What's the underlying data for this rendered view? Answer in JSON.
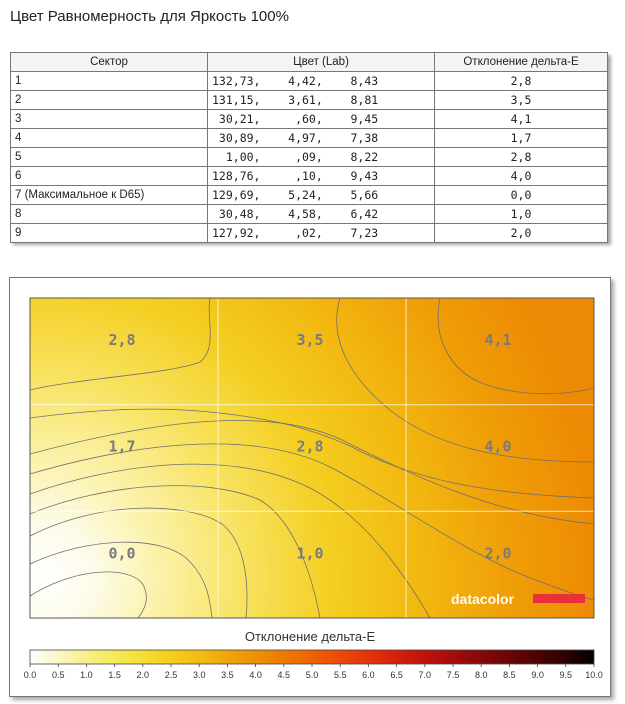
{
  "title": "Цвет Равномерность для Яркость 100%",
  "table": {
    "headers": [
      "Сектор",
      "Цвет (Lab)",
      "Отклонение дельта-E"
    ],
    "rows": [
      {
        "sector": "1",
        "lab": "132,73,    4,42,    8,43",
        "de": "2,8"
      },
      {
        "sector": "2",
        "lab": "131,15,    3,61,    8,81",
        "de": "3,5"
      },
      {
        "sector": "3",
        "lab": " 30,21,     ,60,    9,45",
        "de": "4,1"
      },
      {
        "sector": "4",
        "lab": " 30,89,    4,97,    7,38",
        "de": "1,7"
      },
      {
        "sector": "5",
        "lab": "  1,00,     ,09,    8,22",
        "de": "2,8"
      },
      {
        "sector": "6",
        "lab": "128,76,     ,10,    9,43",
        "de": "4,0"
      },
      {
        "sector": "7 (Максимальное к D65)",
        "lab": "129,69,    5,24,    5,66",
        "de": "0,0"
      },
      {
        "sector": "8",
        "lab": " 30,48,    4,58,    6,42",
        "de": "1,0"
      },
      {
        "sector": "9",
        "lab": "127,92,     ,02,    7,23",
        "de": "2,0"
      }
    ]
  },
  "chart_data": {
    "type": "heatmap",
    "grid_rows": 3,
    "grid_cols": 3,
    "cell_labels": [
      [
        "2,8",
        "3,5",
        "4,1"
      ],
      [
        "1,7",
        "2,8",
        "4,0"
      ],
      [
        "0,0",
        "1,0",
        "2,0"
      ]
    ],
    "values": [
      [
        2.8,
        3.5,
        4.1
      ],
      [
        1.7,
        2.8,
        4.0
      ],
      [
        0.0,
        1.0,
        2.0
      ]
    ],
    "colorbar_title": "Отклонение дельта-E",
    "colorbar_ticks": [
      "0.0",
      "0.5",
      "1.0",
      "1.5",
      "2.0",
      "2.5",
      "3.0",
      "3.5",
      "4.0",
      "4.5",
      "5.0",
      "5.5",
      "6.0",
      "6.5",
      "7.0",
      "7.5",
      "8.0",
      "8.5",
      "9.0",
      "9.5",
      "10.0"
    ],
    "colorbar_range": [
      0,
      10
    ],
    "colorbar_colors": [
      "#ffffff",
      "#fbf6c7",
      "#f8f08a",
      "#f6e95a",
      "#f5df35",
      "#f4cf1a",
      "#f2bd10",
      "#f0a60a",
      "#ee9004",
      "#ee7a00",
      "#ef6203",
      "#ec4808",
      "#e5330a",
      "#d5200b",
      "#bd130b",
      "#a30c0a",
      "#870708",
      "#6b0406",
      "#4d0203",
      "#2e0101",
      "#000000"
    ],
    "watermark": "datacolor",
    "watermark_bar_color": "#e8303a"
  }
}
